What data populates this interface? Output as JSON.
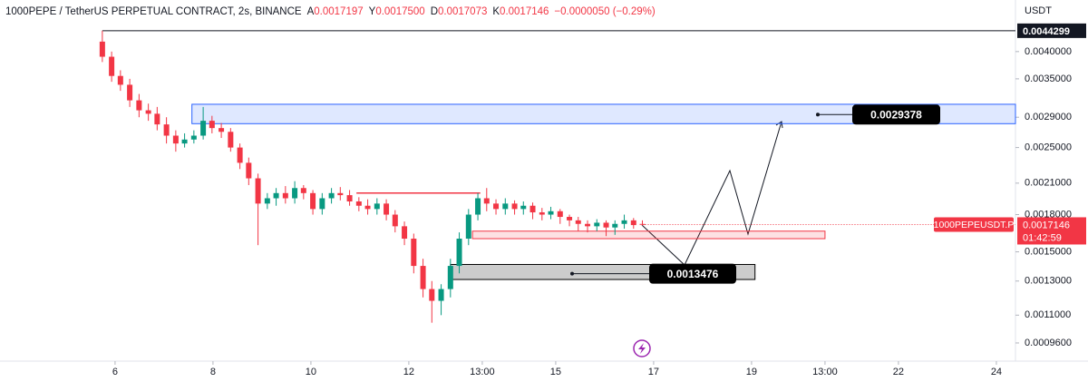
{
  "chart_data": {
    "type": "candlestick",
    "title": "1000PEPE / TetherUS PERPETUAL CONTRACT, 2s, BINANCE",
    "ohlc_legend": [
      {
        "key": "A",
        "text": "0.0017197"
      },
      {
        "key": "Y",
        "text": "0.0017500"
      },
      {
        "key": "D",
        "text": "0.0017073"
      },
      {
        "key": "K",
        "text": "0.0017146"
      }
    ],
    "change": "−0.0000050 (−0.29%)",
    "y_unit": "USDT",
    "log_scale": true,
    "up_color": "#089981",
    "down_color": "#f23645",
    "x": [
      5.74,
      5.93,
      6.11,
      6.3,
      6.49,
      6.68,
      6.86,
      7.05,
      7.24,
      7.42,
      7.61,
      7.8,
      7.98,
      8.17,
      8.36,
      8.55,
      8.73,
      8.92,
      9.11,
      9.29,
      9.48,
      9.67,
      9.85,
      10.04,
      10.23,
      10.42,
      10.6,
      10.79,
      10.98,
      11.16,
      11.35,
      11.54,
      11.72,
      11.91,
      12.1,
      12.29,
      12.47,
      12.66,
      12.85,
      13.03,
      13.22,
      13.41,
      13.59,
      13.78,
      13.97,
      14.16,
      14.34,
      14.53,
      14.72,
      14.9,
      15.09,
      15.28,
      15.46,
      15.65,
      15.84,
      16.03,
      16.21,
      16.4,
      16.59,
      16.77
    ],
    "open": [
      0.0042,
      0.0039,
      0.00355,
      0.0034,
      0.00315,
      0.003,
      0.00295,
      0.0028,
      0.00265,
      0.00255,
      0.0026,
      0.00265,
      0.00285,
      0.00275,
      0.0027,
      0.0025,
      0.00232,
      0.00215,
      0.0019,
      0.00195,
      0.002,
      0.00195,
      0.00205,
      0.002,
      0.00185,
      0.00195,
      0.002,
      0.00198,
      0.00192,
      0.00188,
      0.00185,
      0.0019,
      0.0018,
      0.0017,
      0.0016,
      0.0014,
      0.00125,
      0.00118,
      0.00125,
      0.0014,
      0.0016,
      0.0018,
      0.00195,
      0.0019,
      0.00185,
      0.0019,
      0.00185,
      0.00188,
      0.00182,
      0.0018,
      0.00183,
      0.00178,
      0.00175,
      0.00172,
      0.0017,
      0.00173,
      0.00169,
      0.00172,
      0.00175,
      0.0017197
    ],
    "high": [
      0.00443,
      0.004,
      0.00365,
      0.0035,
      0.00325,
      0.0031,
      0.00305,
      0.0029,
      0.00272,
      0.00268,
      0.00272,
      0.00305,
      0.00292,
      0.00282,
      0.00275,
      0.00255,
      0.00238,
      0.0022,
      0.002,
      0.00205,
      0.00207,
      0.00212,
      0.00208,
      0.00203,
      0.002,
      0.00205,
      0.00206,
      0.00203,
      0.00196,
      0.00194,
      0.00195,
      0.00194,
      0.00184,
      0.00174,
      0.00164,
      0.00145,
      0.0013,
      0.00128,
      0.00145,
      0.00165,
      0.00185,
      0.002,
      0.00205,
      0.00194,
      0.00195,
      0.00193,
      0.00192,
      0.00191,
      0.00186,
      0.00187,
      0.00185,
      0.0018,
      0.00178,
      0.00175,
      0.00176,
      0.00175,
      0.00175,
      0.0018,
      0.00177,
      0.00175
    ],
    "low": [
      0.0038,
      0.00345,
      0.0033,
      0.00305,
      0.0029,
      0.00285,
      0.00272,
      0.00255,
      0.00245,
      0.0025,
      0.00255,
      0.0026,
      0.00268,
      0.00262,
      0.00245,
      0.00225,
      0.00208,
      0.00155,
      0.00185,
      0.00188,
      0.0019,
      0.0019,
      0.00194,
      0.0018,
      0.0018,
      0.0019,
      0.00193,
      0.00188,
      0.00183,
      0.0018,
      0.0018,
      0.00175,
      0.00165,
      0.00155,
      0.00135,
      0.0012,
      0.00106,
      0.0011,
      0.0012,
      0.00135,
      0.00155,
      0.00175,
      0.00183,
      0.0018,
      0.0018,
      0.0018,
      0.0018,
      0.00176,
      0.00175,
      0.00176,
      0.00172,
      0.0017,
      0.00166,
      0.00165,
      0.00166,
      0.00162,
      0.00163,
      0.00168,
      0.00168,
      0.0017073
    ],
    "close": [
      0.0039,
      0.00355,
      0.0034,
      0.00315,
      0.003,
      0.00295,
      0.0028,
      0.00265,
      0.00255,
      0.0026,
      0.00265,
      0.00285,
      0.00275,
      0.0027,
      0.0025,
      0.00232,
      0.00215,
      0.0019,
      0.00195,
      0.002,
      0.00195,
      0.00205,
      0.002,
      0.00185,
      0.00195,
      0.002,
      0.00198,
      0.00192,
      0.00188,
      0.00185,
      0.0019,
      0.0018,
      0.0017,
      0.0016,
      0.0014,
      0.00125,
      0.00118,
      0.00125,
      0.0014,
      0.0016,
      0.0018,
      0.00195,
      0.0019,
      0.00185,
      0.0019,
      0.00185,
      0.00188,
      0.00182,
      0.0018,
      0.00183,
      0.00178,
      0.00175,
      0.00172,
      0.0017,
      0.00173,
      0.00169,
      0.00172,
      0.00175,
      0.00171,
      0.0017146
    ],
    "xlim": [
      3.65,
      24.39
    ],
    "ylim": [
      0.00089,
      0.00467
    ],
    "xticks": [
      6,
      8,
      10,
      12,
      {
        "value": 13.5,
        "label": "13:00"
      },
      15,
      17,
      19,
      {
        "value": 20.5,
        "label": "13:00"
      },
      22,
      24
    ],
    "yticks": [
      {
        "value": 0.00096,
        "label": "0.0009600"
      },
      {
        "value": 0.0011,
        "label": "0.0011000"
      },
      {
        "value": 0.0013,
        "label": "0.0013000"
      },
      {
        "value": 0.0015,
        "label": "0.0015000"
      },
      {
        "value": 0.0018,
        "label": "0.0018000"
      },
      {
        "value": 0.0021,
        "label": "0.0021000"
      },
      {
        "value": 0.0025,
        "label": "0.0025000"
      },
      {
        "value": 0.0029,
        "label": "0.0029000"
      },
      {
        "value": 0.0035,
        "label": "0.0035000"
      },
      {
        "value": 0.004,
        "label": "0.0040000"
      }
    ],
    "high_line": {
      "value": 0.0044299,
      "x": [
        5.74,
        24.39
      ]
    },
    "zones": [
      {
        "color": "#2962ff",
        "x": [
          7.57,
          24.39
        ],
        "y": [
          0.00309,
          0.00281
        ]
      },
      {
        "color": "#f23645",
        "x": [
          13.3,
          20.5
        ],
        "y": [
          0.00166,
          0.0016
        ]
      },
      {
        "color": "#000000",
        "x": [
          12.85,
          19.07
        ],
        "y": [
          0.00141,
          0.00131
        ]
      }
    ],
    "level_line": {
      "color": "#f23645",
      "x": [
        10.93,
        13.46
      ],
      "value": 0.002
    },
    "callouts": [
      0.0029378,
      0.0013476
    ],
    "symbol_tag": "1000PEPEUSDT.P",
    "current_price": 0.0017146,
    "countdown": "01:42:59"
  }
}
